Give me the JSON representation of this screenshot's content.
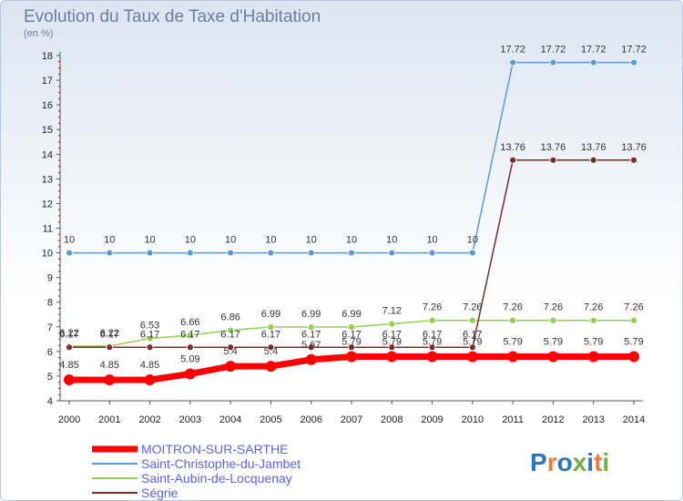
{
  "chart_data": {
    "type": "line",
    "title": "Evolution du Taux de Taxe d'Habitation",
    "subtitle": "(en %)",
    "x": [
      2000,
      2001,
      2002,
      2003,
      2004,
      2005,
      2006,
      2007,
      2008,
      2009,
      2010,
      2011,
      2012,
      2013,
      2014
    ],
    "ylim": [
      4,
      18
    ],
    "yticks": [
      4,
      5,
      6,
      7,
      8,
      9,
      10,
      11,
      12,
      13,
      14,
      15,
      16,
      17,
      18
    ],
    "grid": false,
    "legend_position": "bottom-left",
    "series": [
      {
        "name": "Saint-Christophe-du-Jambet",
        "color": "#5b9bd5",
        "values": [
          10,
          10,
          10,
          10,
          10,
          10,
          10,
          10,
          10,
          10,
          10,
          17.72,
          17.72,
          17.72,
          17.72
        ],
        "labels": [
          "10",
          "10",
          "10",
          "10",
          "10",
          "10",
          "10",
          "10",
          "10",
          "10",
          "10",
          "17.72",
          "17.72",
          "17.72",
          "17.72"
        ]
      },
      {
        "name": "Saint-Aubin-de-Locquenay",
        "color": "#92d050",
        "values": [
          6.22,
          6.22,
          6.53,
          6.66,
          6.86,
          6.99,
          6.99,
          6.99,
          7.12,
          7.26,
          7.26,
          7.26,
          7.26,
          7.26,
          7.26
        ],
        "labels": [
          "6.22",
          "6.22",
          "6.53",
          "6.66",
          "6.86",
          "6.99",
          "6.99",
          "6.99",
          "7.12",
          "7.26",
          "7.26",
          "7.26",
          "7.26",
          "7.26",
          "7.26"
        ]
      },
      {
        "name": "Ségrie",
        "color": "#7b2c2c",
        "values": [
          6.17,
          6.17,
          6.17,
          6.17,
          6.17,
          6.17,
          6.17,
          6.17,
          6.17,
          6.17,
          6.17,
          13.76,
          13.76,
          13.76,
          13.76
        ],
        "labels": [
          "6.17",
          "6.17",
          "6.17",
          "6.17",
          "6.17",
          "6.17",
          "6.17",
          "6.17",
          "6.17",
          "6.17",
          "6.17",
          "13.76",
          "13.76",
          "13.76",
          "13.76"
        ]
      },
      {
        "name": "MOITRON-SUR-SARTHE",
        "color": "#ff0000",
        "values": [
          4.85,
          4.85,
          4.85,
          5.09,
          5.4,
          5.4,
          5.67,
          5.79,
          5.79,
          5.79,
          5.79,
          5.79,
          5.79,
          5.79,
          5.79
        ],
        "labels": [
          "4.85",
          "4.85",
          "4.85",
          "5.09",
          "5.4",
          "5.4",
          "5.67",
          "5.79",
          "5.79",
          "5.79",
          "5.79",
          "5.79",
          "5.79",
          "5.79",
          "5.79"
        ]
      }
    ]
  },
  "legend": [
    {
      "name": "MOITRON-SUR-SARTHE",
      "color": "#ff0000"
    },
    {
      "name": "Saint-Christophe-du-Jambet",
      "color": "#5b9bd5"
    },
    {
      "name": "Saint-Aubin-de-Locquenay",
      "color": "#92d050"
    },
    {
      "name": "Ségrie",
      "color": "#7b2c2c"
    }
  ],
  "logo": {
    "text": "Proxiti"
  }
}
